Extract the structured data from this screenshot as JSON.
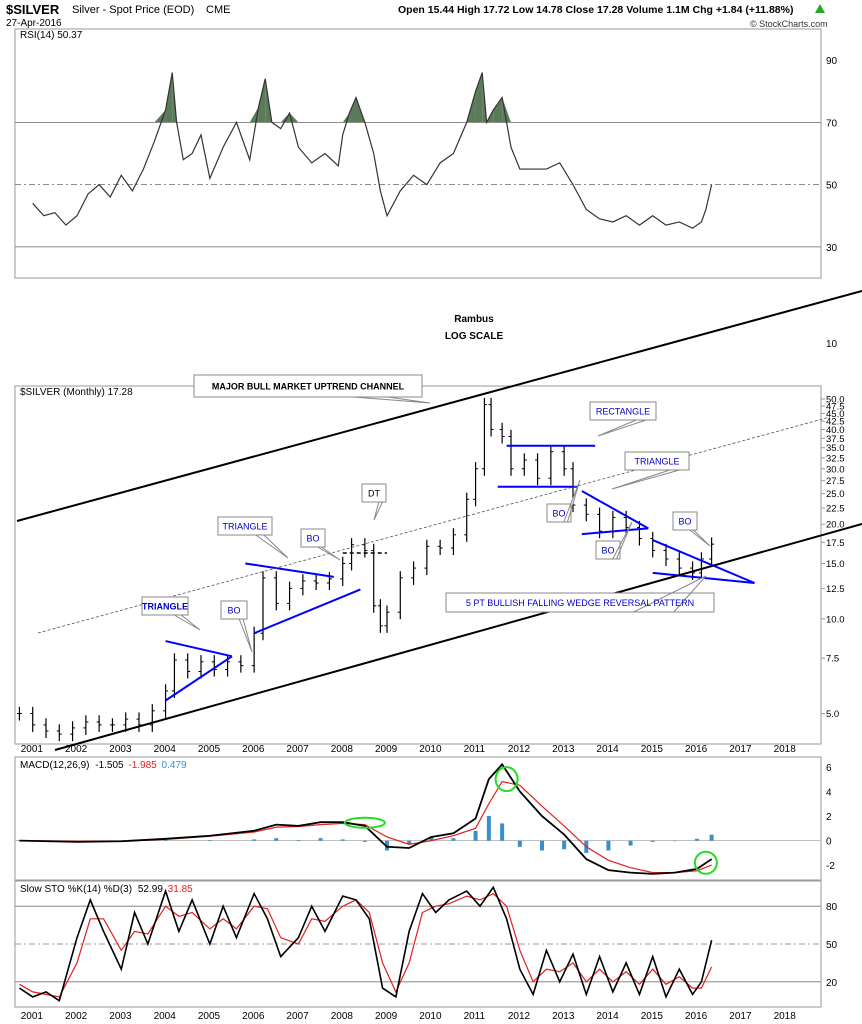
{
  "header": {
    "symbol": "$SILVER",
    "description": "Silver - Spot Price (EOD)",
    "exchange": "CME",
    "date": "27-Apr-2016",
    "ohlc": "Open 15.44  High 17.72  Low 14.78  Close 17.28  Volume 1.1M  Chg +1.84 (+11.88%)",
    "trend_icon": "up-triangle-icon",
    "watermark": "© StockCharts.com"
  },
  "colors": {
    "price": "#000000",
    "pattern_lines": "#0000ff",
    "annotation_text": "#0000cc",
    "rsi_fill": "#5a7a5a",
    "macd_signal": "#e02020",
    "macd_hist": "#3a8fc8",
    "sto_d": "#e02020",
    "highlight_circle": "#22dd22",
    "grid": "#d9d9d9"
  },
  "chart_data": [
    {
      "panel": "rsi",
      "type": "line",
      "label": "RSI(14) 50.37",
      "y_ticks": [
        "90",
        "70",
        "50",
        "30"
      ],
      "ylim": [
        20,
        100
      ],
      "reference_lines": [
        70,
        50,
        30
      ],
      "x": [
        2001.0,
        2001.25,
        2001.5,
        2001.75,
        2002.0,
        2002.25,
        2002.5,
        2002.75,
        2003.0,
        2003.25,
        2003.5,
        2003.75,
        2004.0,
        2004.15,
        2004.25,
        2004.4,
        2004.6,
        2004.8,
        2005.0,
        2005.3,
        2005.6,
        2005.9,
        2006.1,
        2006.25,
        2006.4,
        2006.6,
        2006.8,
        2007.0,
        2007.3,
        2007.6,
        2007.9,
        2008.0,
        2008.15,
        2008.3,
        2008.5,
        2008.7,
        2008.85,
        2009.0,
        2009.3,
        2009.6,
        2009.9,
        2010.2,
        2010.5,
        2010.8,
        2011.0,
        2011.15,
        2011.25,
        2011.4,
        2011.6,
        2011.8,
        2012.0,
        2012.3,
        2012.6,
        2012.9,
        2013.2,
        2013.5,
        2013.8,
        2014.1,
        2014.4,
        2014.7,
        2015.0,
        2015.3,
        2015.6,
        2015.9,
        2016.1,
        2016.2,
        2016.33
      ],
      "y": [
        44,
        40,
        41,
        37,
        40,
        47,
        50,
        46,
        53,
        48,
        55,
        64,
        74,
        86,
        70,
        58,
        60,
        66,
        52,
        62,
        70,
        58,
        75,
        84,
        70,
        68,
        73,
        62,
        57,
        60,
        56,
        66,
        73,
        78,
        70,
        60,
        48,
        40,
        48,
        53,
        50,
        57,
        60,
        70,
        80,
        86,
        70,
        74,
        78,
        62,
        55,
        55,
        55,
        57,
        50,
        42,
        39,
        38,
        40,
        37,
        40,
        37,
        38,
        36,
        38,
        42,
        50
      ]
    },
    {
      "panel": "price",
      "type": "ohlc",
      "label": "$SILVER (Monthly) 17.28",
      "scale": "log",
      "y_ticks": [
        "50.0",
        "47.5",
        "45.0",
        "42.5",
        "40.0",
        "37.5",
        "35.0",
        "32.5",
        "30.0",
        "27.5",
        "25.0",
        "22.5",
        "20.0",
        "17.5",
        "15.0",
        "12.5",
        "10.0",
        "7.5",
        "5.0"
      ],
      "extra_y_ticks": [
        "10"
      ],
      "x_ticks": [
        "2001",
        "2002",
        "2003",
        "2004",
        "2005",
        "2006",
        "2007",
        "2008",
        "2009",
        "2010",
        "2011",
        "2012",
        "2013",
        "2014",
        "2015",
        "2016",
        "2017",
        "2018"
      ],
      "x_range": [
        2000.6,
        2018.8
      ],
      "y_range": [
        4.0,
        55.0
      ],
      "x": [
        2000.7,
        2001.0,
        2001.3,
        2001.6,
        2001.9,
        2002.2,
        2002.5,
        2002.8,
        2003.1,
        2003.4,
        2003.7,
        2004.0,
        2004.2,
        2004.5,
        2004.8,
        2005.1,
        2005.4,
        2005.7,
        2006.0,
        2006.2,
        2006.5,
        2006.8,
        2007.1,
        2007.4,
        2007.7,
        2008.0,
        2008.2,
        2008.5,
        2008.7,
        2008.85,
        2009.0,
        2009.3,
        2009.6,
        2009.9,
        2010.2,
        2010.5,
        2010.8,
        2011.0,
        2011.2,
        2011.35,
        2011.6,
        2011.8,
        2012.1,
        2012.4,
        2012.7,
        2013.0,
        2013.2,
        2013.5,
        2013.8,
        2014.1,
        2014.4,
        2014.7,
        2015.0,
        2015.3,
        2015.6,
        2015.9,
        2016.1,
        2016.33
      ],
      "close": [
        5.0,
        4.6,
        4.4,
        4.3,
        4.5,
        4.7,
        4.6,
        4.6,
        4.8,
        4.6,
        5.1,
        5.9,
        7.4,
        6.8,
        7.3,
        6.9,
        7.3,
        7.1,
        9.0,
        13.5,
        11.2,
        12.5,
        13.2,
        13.0,
        13.4,
        15.0,
        17.2,
        16.5,
        11.0,
        9.5,
        10.5,
        13.5,
        14.5,
        17.0,
        16.8,
        18.5,
        24.0,
        30.0,
        48.0,
        40.0,
        38.0,
        30.0,
        32.0,
        28.0,
        34.0,
        30.0,
        23.0,
        21.5,
        19.0,
        21.0,
        19.5,
        18.0,
        16.5,
        15.5,
        14.5,
        14.0,
        15.5,
        17.28
      ]
    },
    {
      "panel": "macd",
      "type": "line",
      "label": "MACD(12,26,9)",
      "macd_value": "-1.505",
      "signal_value": "-1.985",
      "hist_value": "0.479",
      "y_ticks": [
        "6",
        "4",
        "2",
        "0",
        "-2"
      ],
      "ylim": [
        -3.2,
        6.8
      ],
      "x": [
        2000.7,
        2002,
        2003,
        2004,
        2005,
        2006,
        2006.5,
        2007,
        2007.5,
        2008.0,
        2008.5,
        2009.0,
        2009.5,
        2010.0,
        2010.5,
        2011.0,
        2011.3,
        2011.6,
        2012,
        2012.5,
        2013.0,
        2013.5,
        2014,
        2014.5,
        2015,
        2015.5,
        2016,
        2016.33
      ],
      "macd": [
        0.0,
        -0.1,
        -0.05,
        0.15,
        0.4,
        0.8,
        1.3,
        1.2,
        1.5,
        1.5,
        1.2,
        -0.5,
        -0.6,
        0.3,
        0.6,
        1.8,
        5.0,
        6.2,
        4.0,
        2.0,
        0.5,
        -1.5,
        -2.4,
        -2.6,
        -2.7,
        -2.6,
        -2.3,
        -1.505
      ],
      "signal": [
        0.0,
        -0.05,
        -0.05,
        0.1,
        0.35,
        0.7,
        1.1,
        1.15,
        1.3,
        1.4,
        1.3,
        0.3,
        -0.3,
        0.0,
        0.4,
        1.0,
        3.0,
        4.8,
        4.5,
        2.8,
        1.2,
        -0.5,
        -1.6,
        -2.2,
        -2.6,
        -2.6,
        -2.45,
        -1.985
      ],
      "hist": [
        0.0,
        -0.05,
        0.0,
        0.05,
        0.05,
        0.1,
        0.2,
        0.05,
        0.2,
        0.1,
        -0.1,
        -0.8,
        -0.3,
        0.3,
        0.2,
        0.8,
        2.0,
        1.4,
        -0.5,
        -0.8,
        -0.7,
        -1.0,
        -0.8,
        -0.4,
        -0.1,
        0.0,
        0.15,
        0.479
      ]
    },
    {
      "panel": "stochastic",
      "type": "line",
      "label": "Slow STO %K(14) %D(3)",
      "k_value": "52.99",
      "d_value": "31.85",
      "y_ticks": [
        "80",
        "50",
        "20"
      ],
      "ylim": [
        0,
        100
      ],
      "reference_lines": [
        80,
        50,
        20
      ],
      "x": [
        2000.7,
        2001.0,
        2001.3,
        2001.6,
        2002.0,
        2002.3,
        2002.6,
        2003.0,
        2003.3,
        2003.6,
        2004.0,
        2004.3,
        2004.6,
        2005.0,
        2005.3,
        2005.6,
        2006.0,
        2006.3,
        2006.6,
        2007.0,
        2007.3,
        2007.6,
        2008.0,
        2008.3,
        2008.6,
        2008.9,
        2009.2,
        2009.5,
        2009.8,
        2010.1,
        2010.4,
        2010.8,
        2011.1,
        2011.4,
        2011.7,
        2012.0,
        2012.3,
        2012.6,
        2012.9,
        2013.2,
        2013.5,
        2013.8,
        2014.1,
        2014.4,
        2014.7,
        2015.0,
        2015.3,
        2015.6,
        2015.9,
        2016.1,
        2016.33
      ],
      "k": [
        15,
        8,
        12,
        5,
        55,
        85,
        60,
        30,
        75,
        50,
        92,
        60,
        85,
        50,
        80,
        55,
        90,
        70,
        40,
        55,
        80,
        60,
        88,
        85,
        70,
        15,
        8,
        60,
        90,
        75,
        85,
        92,
        80,
        95,
        70,
        30,
        10,
        45,
        20,
        42,
        10,
        40,
        12,
        35,
        10,
        40,
        8,
        30,
        10,
        20,
        53
      ],
      "d": [
        18,
        12,
        10,
        8,
        35,
        70,
        70,
        45,
        60,
        58,
        80,
        72,
        75,
        62,
        70,
        62,
        80,
        78,
        55,
        50,
        70,
        68,
        80,
        85,
        75,
        35,
        12,
        35,
        75,
        80,
        82,
        88,
        85,
        90,
        80,
        45,
        20,
        30,
        28,
        35,
        20,
        30,
        20,
        28,
        18,
        30,
        18,
        24,
        15,
        15,
        31.85
      ]
    }
  ],
  "annotations": {
    "author": "Rambus",
    "scale_note": "LOG SCALE",
    "channel": "MAJOR BULL MARKET UPTREND CHANNEL",
    "triangle_1": "TRIANGLE",
    "bo_1": "BO",
    "triangle_2": "TRIANGLE",
    "bo_2": "BO",
    "dt": "DT",
    "rectangle": "RECTANGLE",
    "bo_3": "BO",
    "triangle_3": "TRIANGLE",
    "bo_4": "BO",
    "bo_5": "BO",
    "wedge": "5 PT BULLISH FALLING WEDGE REVERSAL PATTERN"
  }
}
